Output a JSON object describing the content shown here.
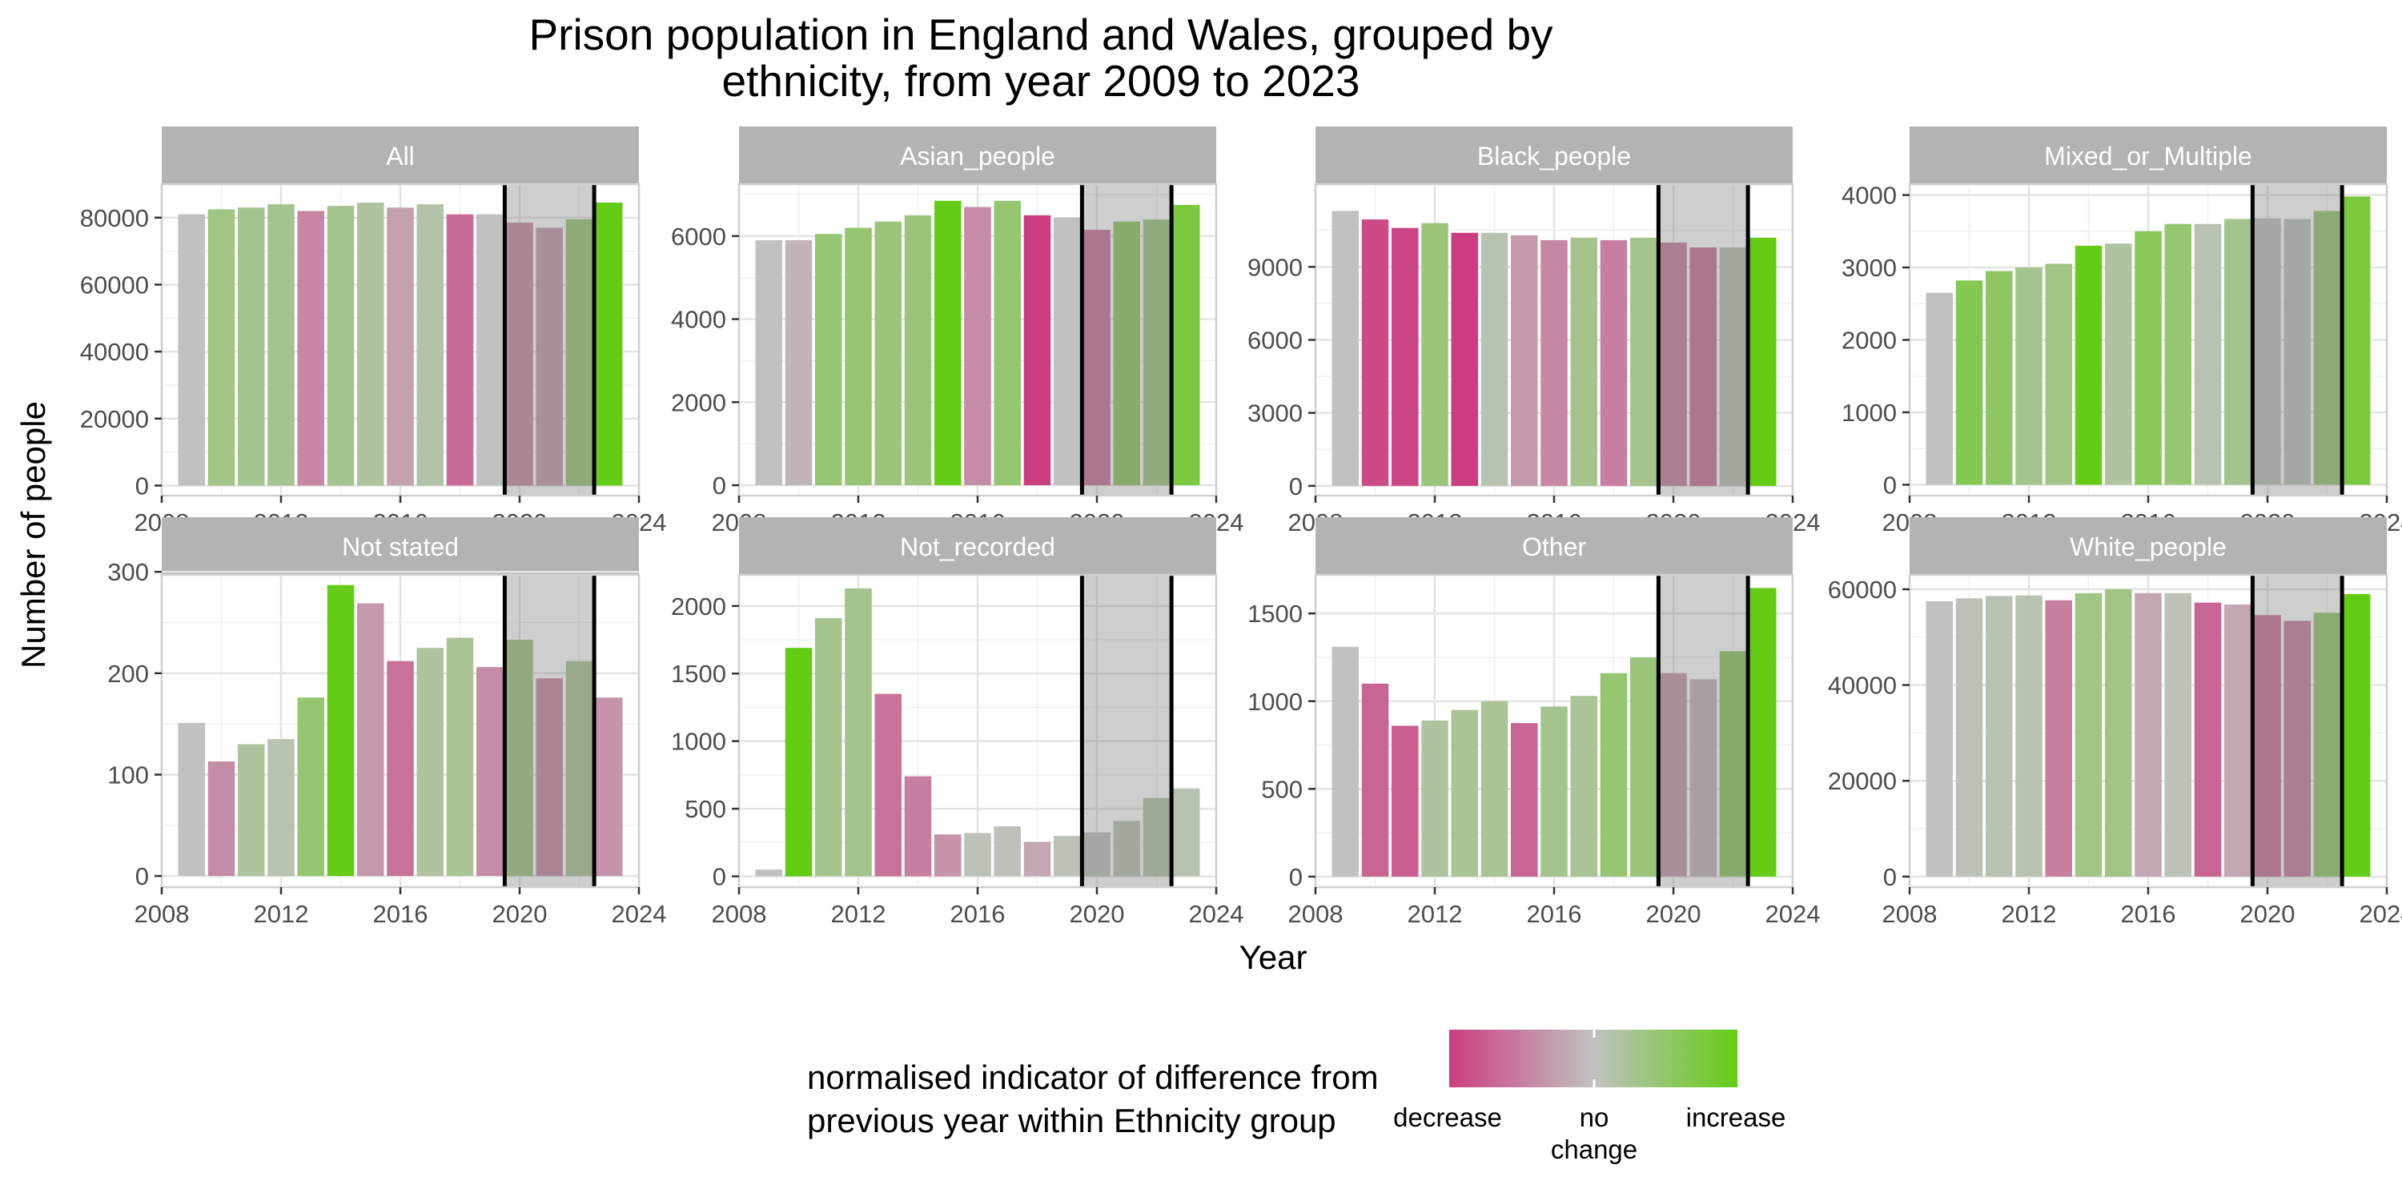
{
  "chart_data": {
    "type": "bar",
    "title": [
      "Prison population in England and Wales, grouped by",
      "ethnicity, from year 2009 to 2023"
    ],
    "xlabel": "Year",
    "ylabel": "Number of people",
    "x": [
      2009,
      2010,
      2011,
      2012,
      2013,
      2014,
      2015,
      2016,
      2017,
      2018,
      2019,
      2020,
      2021,
      2022,
      2023
    ],
    "xlim": [
      2008,
      2024
    ],
    "xticks": [
      2008,
      2012,
      2016,
      2020,
      2024
    ],
    "highlight_band": [
      2019.5,
      2022.5
    ],
    "grid": true,
    "colors": {
      "decrease": "#cc3d80",
      "no_change": "#c1c1c1",
      "increase": "#64cc14",
      "strip": "#b3b3b3",
      "band": "#7f7f7f"
    },
    "legend": {
      "title": [
        "normalised indicator of difference from",
        "previous year within Ethnicity group"
      ],
      "labels": [
        [
          "decrease"
        ],
        [
          "no",
          "change"
        ],
        [
          "increase"
        ]
      ],
      "placement": "bottom"
    },
    "panels": [
      {
        "name": "All",
        "ylim": [
          -3000,
          90000
        ],
        "yticks": [
          0,
          20000,
          40000,
          60000,
          80000
        ],
        "values": [
          81000,
          82500,
          83000,
          84000,
          82000,
          83500,
          84500,
          83000,
          84000,
          81000,
          81000,
          78500,
          77000,
          79500,
          84500
        ],
        "changes": [
          0,
          0.35,
          0.3,
          0.3,
          -0.45,
          0.3,
          0.2,
          -0.25,
          0.15,
          -0.65,
          0,
          -0.4,
          -0.3,
          0.45,
          1.0
        ]
      },
      {
        "name": "Asian_people",
        "ylim": [
          -250,
          7250
        ],
        "yticks": [
          0,
          2000,
          4000,
          6000
        ],
        "values": [
          5900,
          5900,
          6050,
          6200,
          6350,
          6500,
          6850,
          6700,
          6850,
          6500,
          6450,
          6150,
          6350,
          6400,
          6750
        ],
        "changes": [
          0,
          -0.1,
          0.45,
          0.45,
          0.4,
          0.4,
          1.0,
          -0.4,
          0.45,
          -1.0,
          0,
          -0.6,
          0.55,
          0.4,
          0.75
        ]
      },
      {
        "name": "Black_people",
        "ylim": [
          -400,
          12400
        ],
        "yticks": [
          0,
          3000,
          6000,
          9000
        ],
        "values": [
          11300,
          10950,
          10600,
          10800,
          10400,
          10400,
          10300,
          10100,
          10200,
          10100,
          10200,
          10000,
          9800,
          9800,
          10200
        ],
        "changes": [
          0,
          -0.9,
          -0.95,
          0.4,
          -1.0,
          0.1,
          -0.3,
          -0.45,
          0.3,
          -0.5,
          0.3,
          -0.5,
          -0.6,
          0.1,
          1.0
        ]
      },
      {
        "name": "Mixed_or_Multiple",
        "ylim": [
          -150,
          4150
        ],
        "yticks": [
          0,
          1000,
          2000,
          3000,
          4000
        ],
        "values": [
          2650,
          2820,
          2950,
          3000,
          3050,
          3300,
          3330,
          3500,
          3600,
          3600,
          3670,
          3680,
          3670,
          3780,
          3980
        ],
        "changes": [
          0,
          0.65,
          0.55,
          0.3,
          0.35,
          1.0,
          0.2,
          0.6,
          0.45,
          0.1,
          0.3,
          0.05,
          0.05,
          0.45,
          0.75
        ]
      },
      {
        "name": "Not stated",
        "ylim": [
          -11,
          297
        ],
        "yticks": [
          0,
          100,
          200,
          300
        ],
        "values": [
          151,
          113,
          130,
          135,
          176,
          287,
          269,
          212,
          225,
          235,
          206,
          233,
          195,
          212,
          176
        ],
        "changes": [
          0,
          -0.4,
          0.2,
          0.1,
          0.45,
          1.0,
          -0.3,
          -0.6,
          0.2,
          0.25,
          -0.4,
          0.35,
          -0.45,
          0.25,
          -0.35
        ]
      },
      {
        "name": "Not_recorded",
        "ylim": [
          -80,
          2230
        ],
        "yticks": [
          0,
          500,
          1000,
          1500,
          2000
        ],
        "values": [
          50,
          1690,
          1910,
          2130,
          1350,
          740,
          310,
          320,
          370,
          255,
          300,
          325,
          410,
          580,
          650
        ],
        "changes": [
          0,
          1.0,
          0.3,
          0.3,
          -0.6,
          -0.5,
          -0.35,
          0.05,
          0.05,
          -0.2,
          0.05,
          0.05,
          0.1,
          0.15,
          0.1
        ]
      },
      {
        "name": "Other",
        "ylim": [
          -60,
          1720
        ],
        "yticks": [
          0,
          500,
          1000,
          1500
        ],
        "values": [
          1310,
          1100,
          860,
          890,
          950,
          1000,
          875,
          970,
          1030,
          1160,
          1250,
          1160,
          1125,
          1285,
          1645
        ],
        "changes": [
          0,
          -0.7,
          -0.75,
          0.2,
          0.25,
          0.25,
          -0.7,
          0.3,
          0.25,
          0.45,
          0.4,
          -0.3,
          -0.1,
          0.55,
          1.0
        ]
      },
      {
        "name": "White_people",
        "ylim": [
          -2200,
          63000
        ],
        "yticks": [
          0,
          20000,
          40000,
          60000
        ],
        "values": [
          57500,
          58100,
          58600,
          58700,
          57700,
          59200,
          60000,
          59200,
          59200,
          57200,
          56800,
          54600,
          53400,
          55100,
          59000
        ],
        "changes": [
          0,
          0.05,
          0.1,
          0.1,
          -0.5,
          0.35,
          0.35,
          -0.2,
          0.05,
          -0.7,
          -0.2,
          -0.6,
          -0.5,
          0.5,
          1.0
        ]
      }
    ]
  }
}
